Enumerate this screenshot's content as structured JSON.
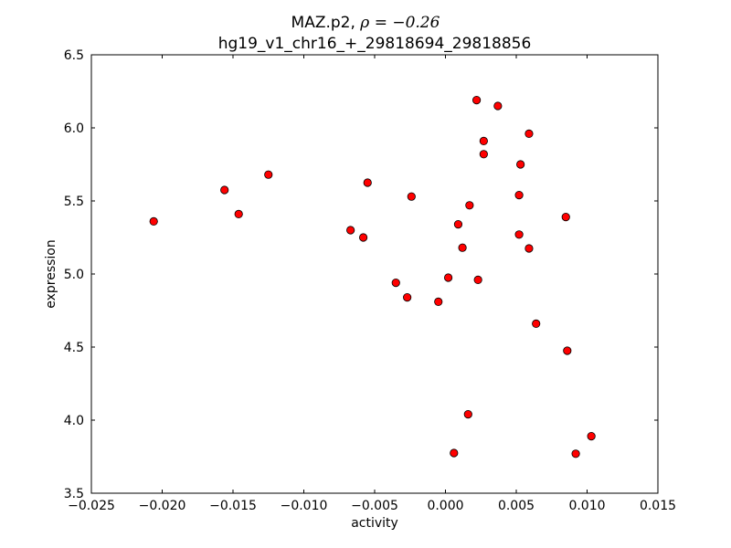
{
  "chart_data": {
    "type": "scatter",
    "title_prefix": "MAZ.p2, ",
    "title_rho": "ρ = −0.26",
    "subtitle": "hg19_v1_chr16_+_29818694_29818856",
    "xlabel": "activity",
    "ylabel": "expression",
    "xlim": [
      -0.025,
      0.015
    ],
    "ylim": [
      3.5,
      6.5
    ],
    "xticks": [
      "−0.025",
      "−0.020",
      "−0.015",
      "−0.010",
      "−0.005",
      "0.000",
      "0.005",
      "0.010",
      "0.015"
    ],
    "xtick_values": [
      -0.025,
      -0.02,
      -0.015,
      -0.01,
      -0.005,
      0,
      0.005,
      0.01,
      0.015
    ],
    "yticks": [
      "3.5",
      "4.0",
      "4.5",
      "5.0",
      "5.5",
      "6.0",
      "6.5"
    ],
    "ytick_values": [
      3.5,
      4.0,
      4.5,
      5.0,
      5.5,
      6.0,
      6.5
    ],
    "marker_color": "#ff0000",
    "points": [
      [
        -0.0206,
        5.36
      ],
      [
        -0.0156,
        5.575
      ],
      [
        -0.0146,
        5.41
      ],
      [
        -0.0125,
        5.68
      ],
      [
        -0.0067,
        5.3
      ],
      [
        -0.0058,
        5.25
      ],
      [
        -0.0055,
        5.625
      ],
      [
        -0.0035,
        4.94
      ],
      [
        -0.0027,
        4.84
      ],
      [
        -0.0024,
        5.53
      ],
      [
        -0.0005,
        4.81
      ],
      [
        0.0002,
        4.975
      ],
      [
        0.0006,
        3.775
      ],
      [
        0.0009,
        5.34
      ],
      [
        0.0012,
        5.18
      ],
      [
        0.0016,
        4.04
      ],
      [
        0.0017,
        5.47
      ],
      [
        0.0022,
        6.19
      ],
      [
        0.0023,
        4.96
      ],
      [
        0.0027,
        5.91
      ],
      [
        0.0027,
        5.82
      ],
      [
        0.0037,
        6.15
      ],
      [
        0.0052,
        5.54
      ],
      [
        0.0052,
        5.27
      ],
      [
        0.0053,
        5.75
      ],
      [
        0.0059,
        5.96
      ],
      [
        0.0059,
        5.175
      ],
      [
        0.0064,
        4.66
      ],
      [
        0.0085,
        5.39
      ],
      [
        0.0086,
        4.475
      ],
      [
        0.0092,
        3.77
      ],
      [
        0.0103,
        3.89
      ]
    ]
  }
}
